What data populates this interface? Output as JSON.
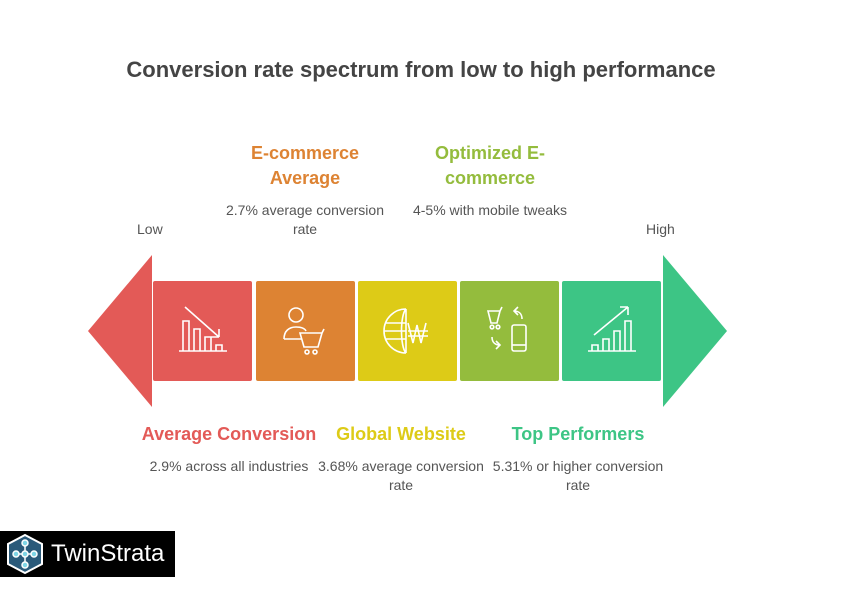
{
  "title": "Conversion rate spectrum from low to high performance",
  "ends": {
    "low": "Low",
    "high": "High"
  },
  "colors": {
    "red": "#E35A57",
    "orange": "#DD8333",
    "yellow": "#DDCB17",
    "olive": "#94BC3D",
    "green": "#3DC585"
  },
  "stages": [
    {
      "heading": "Average Conversion",
      "desc": "2.9% across all industries",
      "icon": "bar-chart-down-icon"
    },
    {
      "heading": "E-commerce Average",
      "desc": "2.7% average conversion rate",
      "icon": "user-cart-icon"
    },
    {
      "heading": "Global Website",
      "desc": "3.68% average conversion rate",
      "icon": "globe-won-icon"
    },
    {
      "heading": "Optimized E-commerce",
      "desc": "4-5% with mobile tweaks",
      "icon": "cart-mobile-icon"
    },
    {
      "heading": "Top Performers",
      "desc": "5.31% or higher conversion rate",
      "icon": "bar-chart-up-icon"
    }
  ],
  "logo": {
    "text": "TwinStrata"
  }
}
